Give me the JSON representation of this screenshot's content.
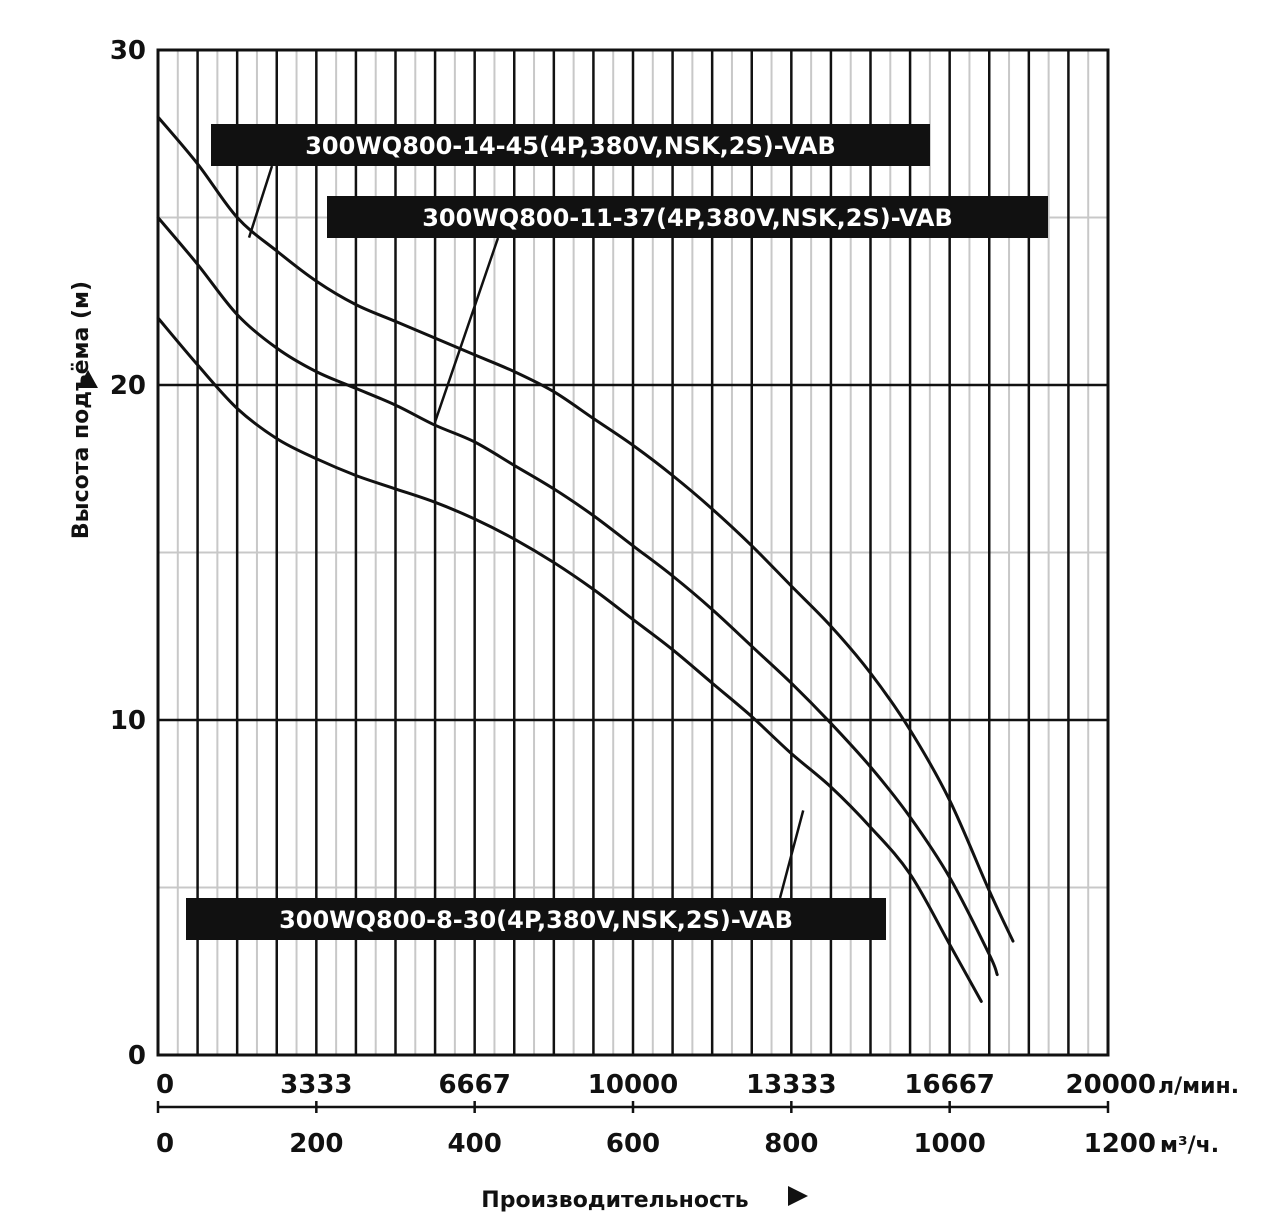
{
  "chart_data": {
    "type": "line",
    "xlabel": "Производительность",
    "ylabel": "Высота подъёма (м)",
    "x_unit_primary": "л/мин.",
    "x_unit_secondary": "м³/ч.",
    "xlim": [
      0,
      1200
    ],
    "ylim": [
      0,
      30
    ],
    "grid": true,
    "y_ticks": [
      "0",
      "10",
      "20",
      "30"
    ],
    "x_ticks_primary": [
      "0",
      "3333",
      "6667",
      "10000",
      "13333",
      "16667",
      "20000"
    ],
    "x_ticks_secondary": [
      "0",
      "200",
      "400",
      "600",
      "800",
      "1000",
      "1200"
    ],
    "series": [
      {
        "name": "300WQ800-14-45(4P,380V,NSK,2S)-VAB",
        "x": [
          0,
          50,
          100,
          150,
          200,
          250,
          300,
          350,
          400,
          450,
          500,
          550,
          600,
          650,
          700,
          750,
          800,
          850,
          900,
          950,
          1000,
          1050,
          1080
        ],
        "y": [
          28.0,
          26.6,
          25.0,
          24.0,
          23.1,
          22.4,
          21.9,
          21.4,
          20.9,
          20.4,
          19.8,
          19.0,
          18.2,
          17.3,
          16.3,
          15.2,
          14.0,
          12.8,
          11.4,
          9.7,
          7.6,
          4.9,
          3.4
        ]
      },
      {
        "name": "300WQ800-11-37(4P,380V,NSK,2S)-VAB",
        "x": [
          0,
          50,
          100,
          150,
          200,
          250,
          300,
          350,
          400,
          450,
          500,
          550,
          600,
          650,
          700,
          750,
          800,
          850,
          900,
          950,
          1000,
          1050,
          1060
        ],
        "y": [
          25.0,
          23.6,
          22.1,
          21.1,
          20.4,
          19.9,
          19.4,
          18.8,
          18.3,
          17.6,
          16.9,
          16.1,
          15.2,
          14.3,
          13.3,
          12.2,
          11.1,
          9.9,
          8.6,
          7.1,
          5.3,
          3.0,
          2.4
        ]
      },
      {
        "name": "300WQ800-8-30(4P,380V,NSK,2S)-VAB",
        "x": [
          0,
          50,
          100,
          150,
          200,
          250,
          300,
          350,
          400,
          450,
          500,
          550,
          600,
          650,
          700,
          750,
          800,
          850,
          900,
          950,
          1000,
          1040
        ],
        "y": [
          22.0,
          20.6,
          19.3,
          18.4,
          17.8,
          17.3,
          16.9,
          16.5,
          16.0,
          15.4,
          14.7,
          13.9,
          13.0,
          12.1,
          11.1,
          10.1,
          9.0,
          8.0,
          6.8,
          5.4,
          3.3,
          1.6
        ]
      }
    ],
    "annotations": [
      {
        "text": "300WQ800-14-45(4P,380V,NSK,2S)-VAB",
        "points_to_x": 115,
        "points_to_y": 24.4
      },
      {
        "text": "300WQ800-11-37(4P,380V,NSK,2S)-VAB",
        "points_to_x": 350,
        "points_to_y": 18.9
      },
      {
        "text": "300WQ800-8-30(4P,380V,NSK,2S)-VAB",
        "points_to_x": 815,
        "points_to_y": 7.3
      }
    ]
  }
}
